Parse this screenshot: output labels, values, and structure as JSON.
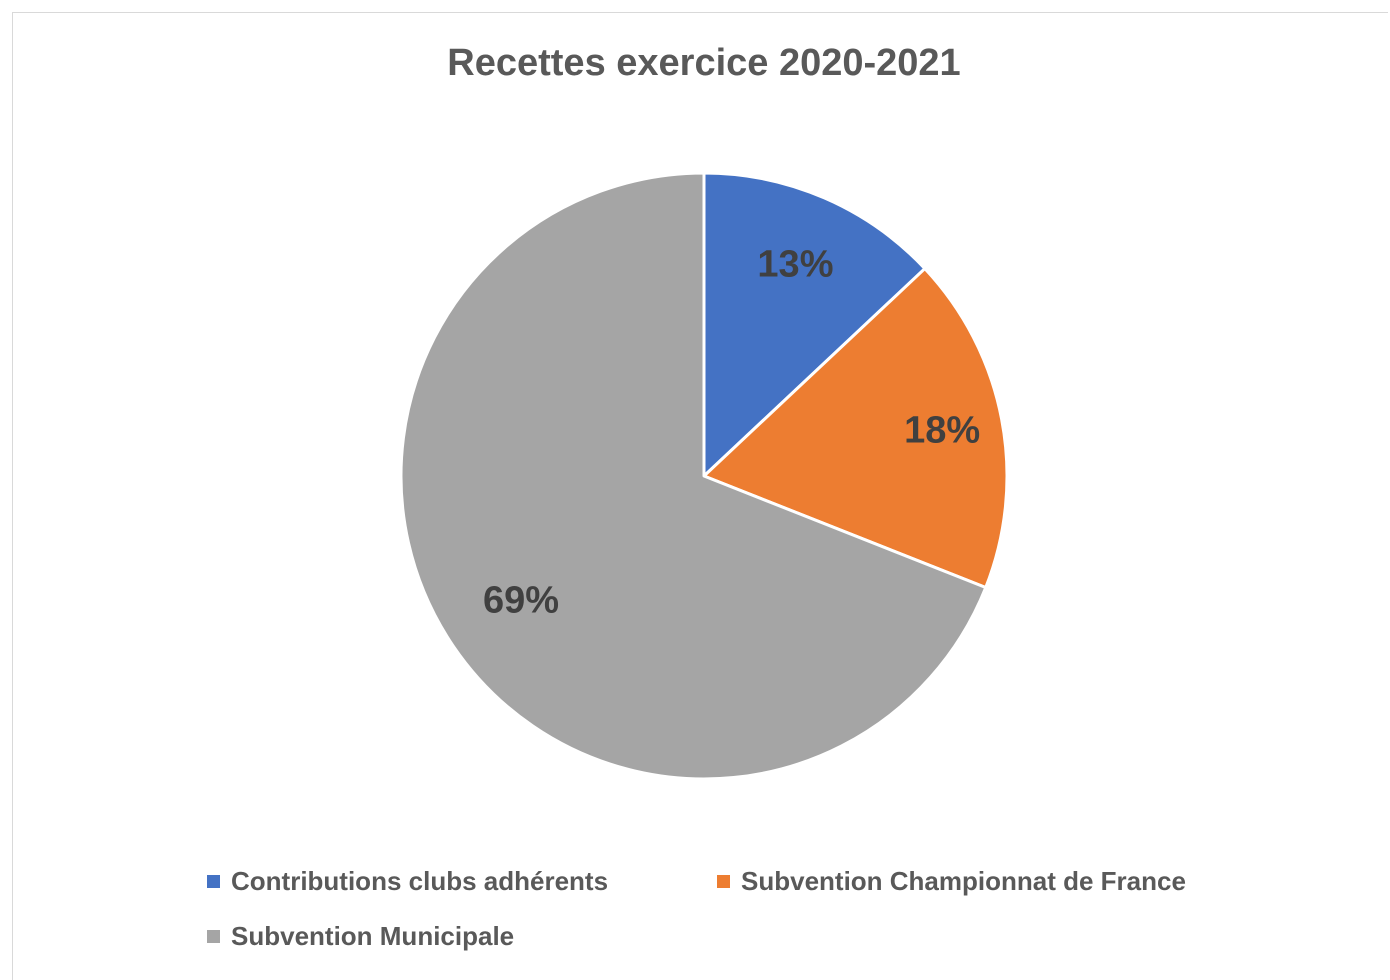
{
  "chart_data": {
    "type": "pie",
    "title": "Recettes exercice 2020-2021",
    "categories": [
      "Contributions clubs adhérents",
      "Subvention Championnat de France",
      "Subvention Municipale"
    ],
    "values": [
      13,
      18,
      69
    ],
    "labels": [
      "13%",
      "18%",
      "69%"
    ],
    "colors": [
      "#4472c4",
      "#ed7d31",
      "#a5a5a5"
    ],
    "legend_position": "bottom"
  }
}
